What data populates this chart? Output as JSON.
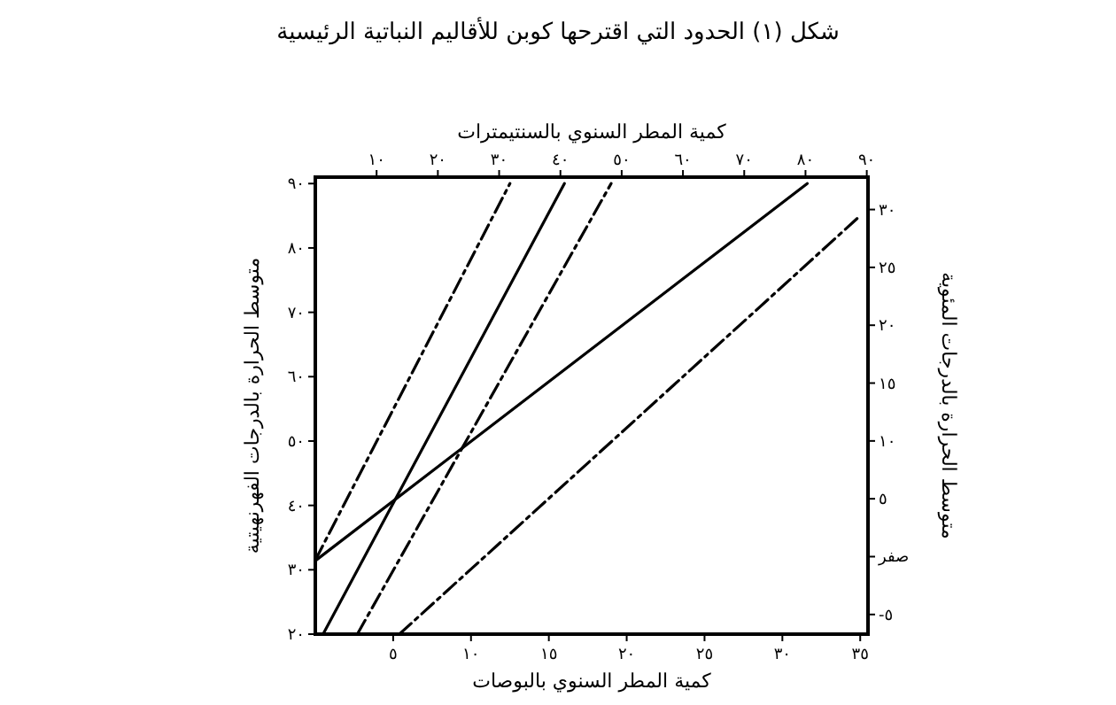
{
  "chart_data": {
    "type": "line",
    "title": "شكل (١) الحدود التي اقترحها كوبن للأقاليم النباتية الرئيسية",
    "xlabel": "كمية المطر السنوي بالبوصات",
    "x2label": "كمية المطر السنوي بالسنتيمترات",
    "ylabel": "متوسط الحرارة بالدرجات الفهرنهيتية",
    "y2label": "متوسط الحرارة بالدرجات المئوية",
    "xlim": [
      0,
      35.5
    ],
    "xticks": [
      {
        "value": 5,
        "label": "٥"
      },
      {
        "value": 10,
        "label": "١٠"
      },
      {
        "value": 15,
        "label": "١٥"
      },
      {
        "value": 20,
        "label": "٢٠"
      },
      {
        "value": 25,
        "label": "٢٥"
      },
      {
        "value": 30,
        "label": "٣٠"
      },
      {
        "value": 35,
        "label": "٣٥"
      }
    ],
    "x2lim": [
      0,
      90.2
    ],
    "x2ticks": [
      {
        "value": 10,
        "label": "١٠"
      },
      {
        "value": 20,
        "label": "٢٠"
      },
      {
        "value": 30,
        "label": "٣٠"
      },
      {
        "value": 40,
        "label": "٤٠"
      },
      {
        "value": 50,
        "label": "٥٠"
      },
      {
        "value": 60,
        "label": "٦٠"
      },
      {
        "value": 70,
        "label": "٧٠"
      },
      {
        "value": 80,
        "label": "٨٠"
      },
      {
        "value": 90,
        "label": "٩٠"
      }
    ],
    "ylim": [
      20,
      91
    ],
    "yticks": [
      {
        "value": 20,
        "label": "٢٠"
      },
      {
        "value": 30,
        "label": "٣٠"
      },
      {
        "value": 40,
        "label": "٤٠"
      },
      {
        "value": 50,
        "label": "٥٠"
      },
      {
        "value": 60,
        "label": "٦٠"
      },
      {
        "value": 70,
        "label": "٧٠"
      },
      {
        "value": 80,
        "label": "٨٠"
      },
      {
        "value": 90,
        "label": "٩٠"
      }
    ],
    "y2lim": [
      -6.7,
      32.8
    ],
    "y2ticks": [
      {
        "value": -5,
        "label": "-٥"
      },
      {
        "value": 0,
        "label": "صفر"
      },
      {
        "value": 5,
        "label": "٥"
      },
      {
        "value": 10,
        "label": "١٠"
      },
      {
        "value": 15,
        "label": "١٥"
      },
      {
        "value": 20,
        "label": "٢٠"
      },
      {
        "value": 25,
        "label": "٢٥"
      },
      {
        "value": 30,
        "label": "٣٠"
      }
    ],
    "grid": false,
    "series": [
      {
        "color": "#000000",
        "line_style": "dashed",
        "x": [
          0,
          12.5
        ],
        "values": [
          31.5,
          90
        ]
      },
      {
        "color": "#000000",
        "line_style": "solid",
        "x": [
          0.5,
          16
        ],
        "values": [
          20,
          90
        ]
      },
      {
        "color": "#000000",
        "line_style": "dashed",
        "x": [
          2.7,
          19
        ],
        "values": [
          20,
          90
        ]
      },
      {
        "color": "#000000",
        "line_style": "solid",
        "x": [
          0,
          31.6
        ],
        "values": [
          31.4,
          90
        ]
      },
      {
        "color": "#000000",
        "line_style": "dashed",
        "x": [
          5.4,
          35
        ],
        "values": [
          20,
          85
        ]
      }
    ]
  }
}
